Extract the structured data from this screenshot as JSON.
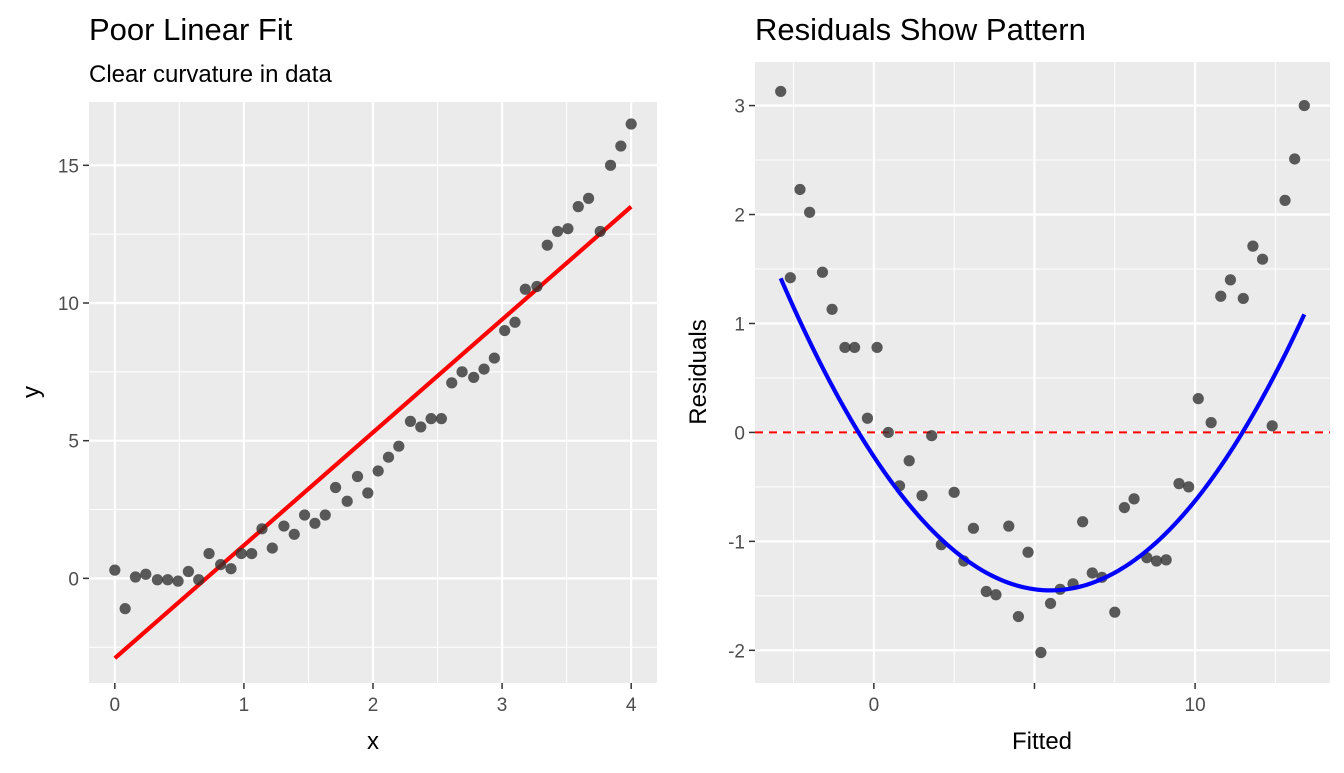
{
  "charts": [
    {
      "type": "scatter",
      "title": "Poor Linear Fit",
      "subtitle": "Clear curvature in data",
      "xlabel": "x",
      "ylabel": "y",
      "xlim": [
        -0.2,
        4.2
      ],
      "ylim": [
        -3.8,
        17.3
      ],
      "xticks": [
        0,
        1,
        2,
        3,
        4
      ],
      "xtick_labels": [
        "0",
        "1",
        "2",
        "3",
        "4"
      ],
      "yticks": [
        0,
        5,
        10,
        15
      ],
      "ytick_labels": [
        "0",
        "5",
        "10",
        "15"
      ],
      "xminor": [
        -0.5,
        0.5,
        1.5,
        2.5,
        3.5
      ],
      "yminor": [
        -2.5,
        2.5,
        7.5,
        12.5
      ],
      "grid": true,
      "points": {
        "color": "#333333",
        "x": [
          0.0,
          0.08,
          0.16,
          0.24,
          0.33,
          0.41,
          0.49,
          0.57,
          0.65,
          0.73,
          0.82,
          0.9,
          0.98,
          1.06,
          1.14,
          1.22,
          1.31,
          1.39,
          1.47,
          1.55,
          1.63,
          1.71,
          1.8,
          1.88,
          1.96,
          2.04,
          2.12,
          2.2,
          2.29,
          2.37,
          2.45,
          2.53,
          2.61,
          2.69,
          2.78,
          2.86,
          2.94,
          3.02,
          3.1,
          3.18,
          3.27,
          3.35,
          3.43,
          3.51,
          3.59,
          3.67,
          3.76,
          3.84,
          3.92,
          4.0
        ],
        "y": [
          0.3,
          -1.1,
          0.05,
          0.15,
          -0.05,
          -0.05,
          -0.1,
          0.25,
          -0.05,
          0.9,
          0.5,
          0.35,
          0.9,
          0.9,
          1.8,
          1.1,
          1.9,
          1.6,
          2.3,
          2.0,
          2.3,
          3.3,
          2.8,
          3.7,
          3.1,
          3.9,
          4.4,
          4.8,
          5.7,
          5.5,
          5.8,
          5.8,
          7.1,
          7.5,
          7.3,
          7.6,
          8.0,
          9.0,
          9.3,
          10.5,
          10.6,
          12.1,
          12.6,
          12.7,
          13.5,
          13.8,
          12.6,
          15.0,
          15.7,
          16.5
        ]
      },
      "fit_line": {
        "color": "#ff0000",
        "x": [
          0,
          4
        ],
        "y": [
          -2.9,
          13.5
        ]
      }
    },
    {
      "type": "scatter",
      "title": "Residuals Show Pattern",
      "subtitle": "",
      "xlabel": "Fitted",
      "ylabel": "Residuals",
      "xlim": [
        -3.7,
        14.2
      ],
      "ylim": [
        -2.3,
        3.4
      ],
      "xticks": [
        0,
        5,
        10
      ],
      "xtick_labels": [
        "0",
        "",
        "10"
      ],
      "yticks": [
        -2,
        -1,
        0,
        1,
        2,
        3
      ],
      "ytick_labels": [
        "-2",
        "-1",
        "0",
        "1",
        "2",
        "3"
      ],
      "xminor": [
        -2.5,
        2.5,
        7.5,
        12.5
      ],
      "yminor": [
        -1.5,
        -0.5,
        0.5,
        1.5,
        2.5
      ],
      "grid": true,
      "points": {
        "color": "#333333",
        "x": [
          -2.9,
          -2.6,
          -2.3,
          -2.0,
          -1.6,
          -1.3,
          -0.9,
          -0.6,
          -0.2,
          0.1,
          0.45,
          0.8,
          1.1,
          1.5,
          1.8,
          2.1,
          2.5,
          2.8,
          3.1,
          3.5,
          3.8,
          4.2,
          4.5,
          4.8,
          5.2,
          5.5,
          5.8,
          6.2,
          6.5,
          6.8,
          7.1,
          7.5,
          7.8,
          8.1,
          8.5,
          8.8,
          9.1,
          9.5,
          9.8,
          10.1,
          10.5,
          10.8,
          11.1,
          11.5,
          11.8,
          12.1,
          12.4,
          12.8,
          13.1,
          13.4
        ],
        "y": [
          3.13,
          1.42,
          2.23,
          2.02,
          1.47,
          1.13,
          0.78,
          0.78,
          0.13,
          0.78,
          0.0,
          -0.49,
          -0.26,
          -0.58,
          -0.03,
          -1.03,
          -0.55,
          -1.18,
          -0.88,
          -1.46,
          -1.49,
          -0.86,
          -1.69,
          -1.1,
          -2.02,
          -1.57,
          -1.44,
          -1.39,
          -0.82,
          -1.29,
          -1.33,
          -1.65,
          -0.69,
          -0.61,
          -1.15,
          -1.18,
          -1.17,
          -0.47,
          -0.5,
          0.31,
          0.09,
          1.25,
          1.4,
          1.23,
          1.71,
          1.59,
          0.06,
          2.13,
          2.51,
          3.0
        ]
      },
      "smooth_curve": {
        "color": "#0000ff",
        "x_range": [
          -2.9,
          13.4
        ],
        "a": 0.0406,
        "b": 5.5,
        "c": -1.45
      },
      "reference_line": {
        "color": "#ff0000",
        "y": 0
      }
    }
  ]
}
